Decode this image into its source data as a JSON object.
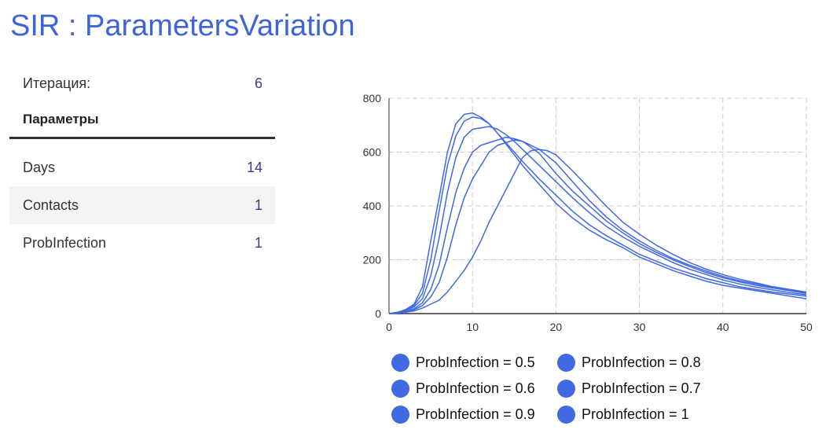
{
  "page": {
    "title": "SIR : ParametersVariation"
  },
  "panel": {
    "iteration_label": "Итерация:",
    "iteration_value": "6",
    "params_header": "Параметры",
    "params": [
      {
        "label": "Days",
        "value": "14"
      },
      {
        "label": "Contacts",
        "value": "1"
      },
      {
        "label": "ProbInfection",
        "value": "1"
      }
    ]
  },
  "colors": {
    "accent": "#3e64d8",
    "series": "#4169e1",
    "grid": "#cccccc"
  },
  "chart_data": {
    "type": "line",
    "title": "",
    "xlabel": "",
    "ylabel": "",
    "xlim": [
      0,
      50
    ],
    "ylim": [
      0,
      800
    ],
    "xticks": [
      0,
      10,
      20,
      30,
      40,
      50
    ],
    "yticks": [
      0,
      200,
      400,
      600,
      800
    ],
    "grid": true,
    "legend_position": "bottom",
    "series": [
      {
        "name": "ProbInfection = 1",
        "x": [
          0,
          1,
          2,
          3,
          4,
          5,
          6,
          7,
          8,
          9,
          10,
          11,
          12,
          13,
          14,
          15,
          16,
          18,
          20,
          22,
          24,
          26,
          28,
          30,
          32,
          34,
          36,
          38,
          40,
          42,
          44,
          46,
          48,
          50
        ],
        "y": [
          0,
          5,
          15,
          35,
          100,
          270,
          430,
          600,
          705,
          740,
          745,
          730,
          705,
          670,
          630,
          590,
          550,
          480,
          410,
          355,
          310,
          275,
          245,
          210,
          185,
          160,
          140,
          120,
          105,
          95,
          85,
          75,
          65,
          55
        ]
      },
      {
        "name": "ProbInfection = 0.9",
        "x": [
          0,
          1,
          2,
          3,
          4,
          5,
          6,
          7,
          8,
          9,
          10,
          11,
          12,
          13,
          14,
          15,
          16,
          18,
          20,
          22,
          24,
          26,
          28,
          30,
          32,
          34,
          36,
          38,
          40,
          42,
          44,
          46,
          48,
          50
        ],
        "y": [
          0,
          4,
          12,
          30,
          75,
          200,
          380,
          550,
          660,
          715,
          730,
          725,
          705,
          670,
          635,
          600,
          565,
          500,
          440,
          380,
          330,
          290,
          255,
          220,
          195,
          170,
          150,
          130,
          115,
          100,
          90,
          80,
          72,
          65
        ]
      },
      {
        "name": "ProbInfection = 0.8",
        "x": [
          0,
          1,
          2,
          3,
          4,
          5,
          6,
          7,
          8,
          9,
          10,
          11,
          12,
          13,
          14,
          15,
          16,
          18,
          20,
          22,
          24,
          26,
          28,
          30,
          32,
          34,
          36,
          38,
          40,
          42,
          44,
          46,
          48,
          50
        ],
        "y": [
          0,
          3,
          10,
          25,
          55,
          140,
          280,
          450,
          580,
          655,
          685,
          690,
          695,
          685,
          665,
          640,
          610,
          550,
          490,
          430,
          375,
          325,
          285,
          250,
          220,
          190,
          165,
          145,
          125,
          110,
          98,
          88,
          78,
          70
        ]
      },
      {
        "name": "ProbInfection = 0.7",
        "x": [
          0,
          1,
          2,
          3,
          4,
          5,
          6,
          7,
          8,
          9,
          10,
          11,
          12,
          13,
          14,
          15,
          16,
          18,
          20,
          22,
          24,
          26,
          28,
          30,
          32,
          34,
          36,
          38,
          40,
          42,
          44,
          46,
          48,
          50
        ],
        "y": [
          0,
          3,
          8,
          18,
          40,
          90,
          180,
          320,
          450,
          540,
          600,
          625,
          635,
          645,
          655,
          650,
          640,
          595,
          520,
          455,
          400,
          345,
          300,
          260,
          228,
          200,
          175,
          152,
          133,
          118,
          105,
          95,
          85,
          75
        ]
      },
      {
        "name": "ProbInfection = 0.6",
        "x": [
          0,
          1,
          2,
          3,
          4,
          5,
          6,
          7,
          8,
          9,
          10,
          11,
          12,
          13,
          14,
          15,
          16,
          18,
          20,
          22,
          24,
          26,
          28,
          30,
          32,
          34,
          36,
          38,
          40,
          42,
          44,
          46,
          48,
          50
        ],
        "y": [
          0,
          2,
          6,
          14,
          30,
          62,
          115,
          210,
          330,
          430,
          500,
          550,
          600,
          625,
          635,
          645,
          640,
          610,
          560,
          490,
          420,
          360,
          310,
          270,
          235,
          205,
          180,
          158,
          138,
          122,
          110,
          98,
          88,
          78
        ]
      },
      {
        "name": "ProbInfection = 0.5",
        "x": [
          0,
          1,
          2,
          3,
          4,
          5,
          6,
          7,
          8,
          9,
          10,
          11,
          12,
          13,
          14,
          15,
          16,
          17,
          18,
          19,
          20,
          22,
          24,
          26,
          28,
          30,
          32,
          34,
          36,
          38,
          40,
          42,
          44,
          46,
          48,
          50
        ],
        "y": [
          0,
          2,
          5,
          10,
          20,
          35,
          50,
          80,
          120,
          160,
          210,
          270,
          340,
          400,
          460,
          520,
          580,
          605,
          610,
          605,
          590,
          530,
          465,
          400,
          340,
          295,
          255,
          220,
          190,
          165,
          145,
          128,
          114,
          100,
          90,
          80
        ]
      }
    ]
  },
  "legend": {
    "items": [
      {
        "label": "ProbInfection = 0.5"
      },
      {
        "label": "ProbInfection = 0.8"
      },
      {
        "label": "ProbInfection = 0.6"
      },
      {
        "label": "ProbInfection = 0.7"
      },
      {
        "label": "ProbInfection = 0.9"
      },
      {
        "label": "ProbInfection = 1"
      }
    ]
  }
}
